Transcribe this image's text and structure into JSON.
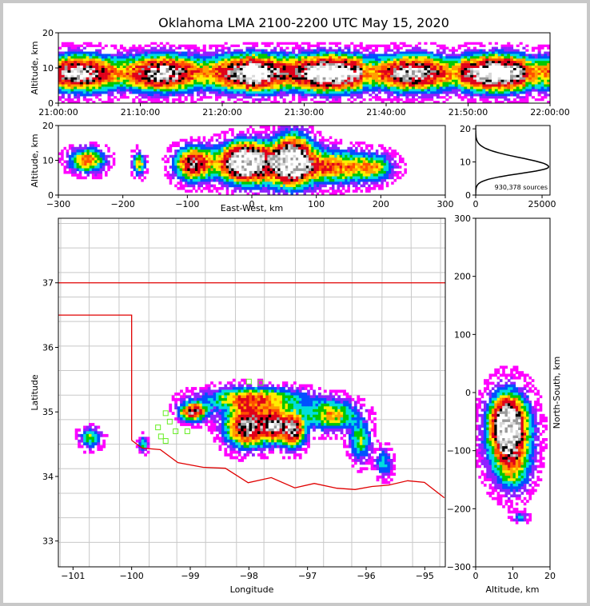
{
  "title": "Oklahoma LMA 2100-2200 UTC May 15, 2020",
  "chart_data": [
    {
      "id": "time_height",
      "type": "heatmap",
      "title": "",
      "xlabel": "",
      "ylabel": "Altitude, km",
      "x_ticks": [
        "21:00:00",
        "21:10:00",
        "21:20:00",
        "21:30:00",
        "21:40:00",
        "21:50:00",
        "22:00:00"
      ],
      "x_range_min": [
        0,
        60
      ],
      "y_ticks": [
        0,
        10,
        20
      ],
      "ylim": [
        0,
        20
      ],
      "core_altitude_km": 8.5
    },
    {
      "id": "ew_height",
      "type": "heatmap",
      "xlabel": "East-West, km",
      "ylabel": "Altitude, km",
      "x_ticks": [
        -300,
        -200,
        -100,
        0,
        100,
        200,
        300
      ],
      "xlim": [
        -300,
        300
      ],
      "y_ticks": [
        0,
        10,
        20
      ],
      "ylim": [
        0,
        20
      ]
    },
    {
      "id": "alt_histogram",
      "type": "line",
      "x_ticks": [
        0,
        25000
      ],
      "xlim": [
        0,
        28000
      ],
      "y_ticks": [
        0,
        10,
        20
      ],
      "ylim": [
        0,
        21
      ],
      "peak_altitude_km": 8.5,
      "peak_count": 27500,
      "annotation": "930,378 sources"
    },
    {
      "id": "plan_view",
      "type": "heatmap",
      "xlabel": "Longitude",
      "ylabel": "Latitude",
      "x_ticks": [
        -101,
        -100,
        -99,
        -98,
        -97,
        -96,
        -95
      ],
      "xlim": [
        -101.25,
        -94.65
      ],
      "y_ticks": [
        33,
        34,
        35,
        36,
        37
      ],
      "ylim": [
        32.6,
        38.0
      ]
    },
    {
      "id": "ns_height",
      "type": "heatmap",
      "xlabel": "Altitude, km",
      "ylabel": "North-South, km",
      "x_ticks": [
        0,
        10,
        20
      ],
      "xlim": [
        0,
        20
      ],
      "y_ticks": [
        -300,
        -200,
        -100,
        0,
        100,
        200,
        300
      ],
      "ylim": [
        -300,
        300
      ]
    }
  ],
  "colors": {
    "background": "#ffffff",
    "state_border": "#e00000",
    "county_line": "#c8c8c8",
    "station_marker": "#66ee22",
    "palette": [
      "#ffffff",
      "#d8d8d8",
      "#9a9a9a",
      "#000000",
      "#e0001a",
      "#ff5000",
      "#ffa000",
      "#ffee00",
      "#00c800",
      "#00dddd",
      "#0050ff",
      "#9020ff",
      "#ff00ff"
    ]
  }
}
